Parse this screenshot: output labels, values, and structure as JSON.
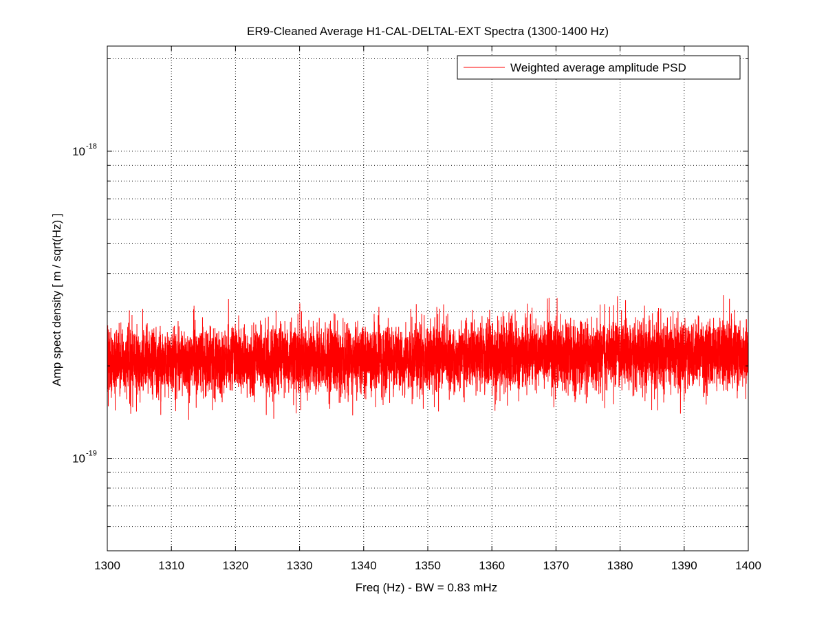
{
  "chart_data": {
    "type": "line",
    "title": "ER9-Cleaned Average H1-CAL-DELTAL-EXT Spectra (1300-1400 Hz)",
    "xlabel": "Freq (Hz) - BW = 0.83 mHz",
    "ylabel": "Amp spect density [ m / sqrt(Hz) ]",
    "xlim": [
      1300,
      1400
    ],
    "ylim": [
      5e-20,
      2.2e-18
    ],
    "yscale": "log",
    "grid": true,
    "legend_position": "top-right",
    "x_ticks": [
      1300,
      1310,
      1320,
      1330,
      1340,
      1350,
      1360,
      1370,
      1380,
      1390,
      1400
    ],
    "x_tick_labels": [
      "1300",
      "1310",
      "1320",
      "1330",
      "1340",
      "1350",
      "1360",
      "1370",
      "1380",
      "1390",
      "1400"
    ],
    "y_major_ticks": [
      {
        "value": 1e-19,
        "base": "10",
        "exponent": "-19"
      },
      {
        "value": 1e-18,
        "base": "10",
        "exponent": "-18"
      }
    ],
    "series": [
      {
        "name": "Weighted average amplitude PSD",
        "color": "#ff0000",
        "band": {
          "x": [
            1300,
            1310,
            1320,
            1330,
            1340,
            1350,
            1360,
            1370,
            1380,
            1390,
            1400
          ],
          "median": [
            2.05e-19,
            2.07e-19,
            2.07e-19,
            2.1e-19,
            2.1e-19,
            2.12e-19,
            2.15e-19,
            2.18e-19,
            2.2e-19,
            2.22e-19,
            2.2e-19
          ],
          "typical_low": [
            1.62e-19,
            1.62e-19,
            1.65e-19,
            1.65e-19,
            1.66e-19,
            1.68e-19,
            1.7e-19,
            1.72e-19,
            1.72e-19,
            1.73e-19,
            1.75e-19
          ],
          "typical_high": [
            2.6e-19,
            2.62e-19,
            2.65e-19,
            2.67e-19,
            2.7e-19,
            2.72e-19,
            2.75e-19,
            2.8e-19,
            2.82e-19,
            2.85e-19,
            2.85e-19
          ],
          "extreme_low": 1.3e-19,
          "extreme_high": 3.4e-19
        }
      }
    ]
  }
}
